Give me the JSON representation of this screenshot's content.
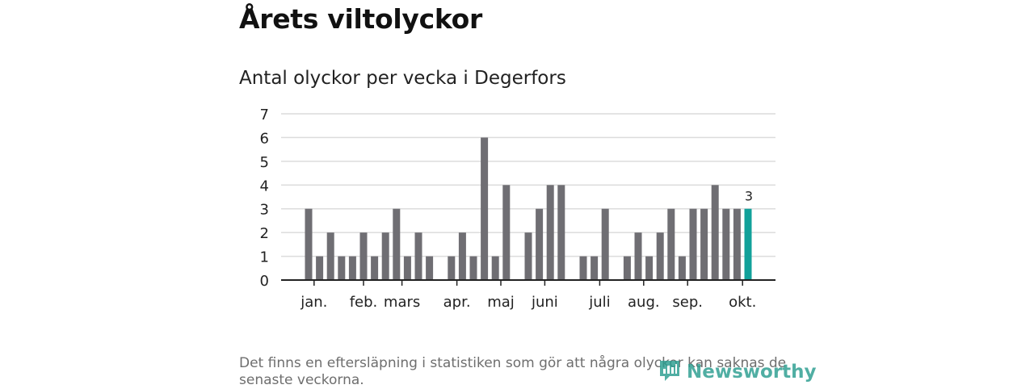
{
  "title": "Årets viltolyckor",
  "subtitle": "Antal olyckor per vecka i Degerfors",
  "footnote": "Det finns en eftersläpning i statistiken som gör att några olyckor kan saknas de senaste veckorna.",
  "brand": {
    "name": "Newsworthy",
    "icon": "newsworthy-logo-icon",
    "color": "#2a9d8f"
  },
  "chart_data": {
    "type": "bar",
    "x": [
      1,
      2,
      3,
      4,
      5,
      6,
      7,
      8,
      9,
      10,
      11,
      12,
      13,
      14,
      15,
      16,
      17,
      18,
      19,
      20,
      21,
      22,
      23,
      24,
      25,
      26,
      27,
      28,
      29,
      30,
      31,
      32,
      33,
      34,
      35,
      36,
      37,
      38,
      39,
      40,
      41
    ],
    "values": [
      3,
      1,
      2,
      1,
      1,
      2,
      1,
      2,
      3,
      1,
      2,
      1,
      0,
      1,
      2,
      1,
      6,
      1,
      4,
      0,
      2,
      3,
      4,
      4,
      0,
      1,
      1,
      3,
      0,
      1,
      2,
      1,
      2,
      3,
      1,
      3,
      3,
      4,
      3,
      3,
      3
    ],
    "highlight_index": 40,
    "highlight_label": "3",
    "colors": {
      "bar": "#6f6e73",
      "highlight": "#12a19a",
      "grid": "#dcdcdc",
      "axis": "#222222"
    },
    "ylim": [
      0,
      7
    ],
    "yticks": [
      "0",
      "1",
      "2",
      "3",
      "4",
      "5",
      "6",
      "7"
    ],
    "month_ticks": [
      {
        "label": "jan.",
        "week": 1.5
      },
      {
        "label": "feb.",
        "week": 6
      },
      {
        "label": "mars",
        "week": 9.5
      },
      {
        "label": "apr.",
        "week": 14.5
      },
      {
        "label": "maj",
        "week": 18.5
      },
      {
        "label": "juni",
        "week": 22.5
      },
      {
        "label": "juli",
        "week": 27.5
      },
      {
        "label": "aug.",
        "week": 31.5
      },
      {
        "label": "sep.",
        "week": 35.5
      },
      {
        "label": "okt.",
        "week": 40.5
      }
    ],
    "grid": true,
    "legend": "none"
  }
}
